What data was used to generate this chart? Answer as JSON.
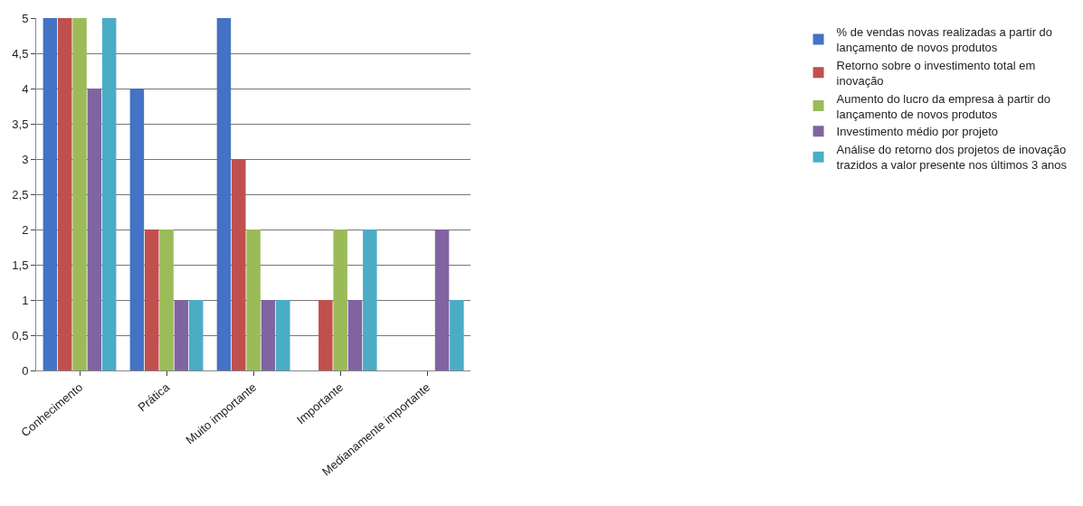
{
  "chart_data": {
    "type": "bar",
    "categories": [
      "Conhecimento",
      "Prática",
      "Muito importante",
      "Importante",
      "Medianamente importante"
    ],
    "series": [
      {
        "name": "% de vendas novas realizadas a partir do lançamento de novos produtos",
        "color": "#4472c4",
        "values": [
          5,
          4,
          5,
          0,
          0
        ]
      },
      {
        "name": "Retorno sobre o investimento total em inovação",
        "color": "#c0504d",
        "values": [
          5,
          2,
          3,
          1,
          0
        ]
      },
      {
        "name": "Aumento do lucro da empresa à partir do lançamento de novos produtos",
        "color": "#9bbb59",
        "values": [
          5,
          2,
          2,
          2,
          0
        ]
      },
      {
        "name": "Investimento médio por projeto",
        "color": "#8064a2",
        "values": [
          4,
          1,
          1,
          1,
          2
        ]
      },
      {
        "name": "Análise do retorno dos projetos de inovação trazidos a valor presente nos últimos 3 anos",
        "color": "#4bacc6",
        "values": [
          5,
          1,
          1,
          2,
          1
        ]
      }
    ],
    "ylim": [
      0,
      5
    ],
    "yticks": [
      0,
      {
        "value": 0.5,
        "label": "0,5"
      },
      1,
      {
        "value": 1.5,
        "label": "1,5"
      },
      2,
      {
        "value": 2.5,
        "label": "2,5"
      },
      3,
      {
        "value": 3.5,
        "label": "3,5"
      },
      4,
      {
        "value": 4.5,
        "label": "4,5"
      },
      5
    ],
    "grid": "y",
    "legend": "right"
  }
}
